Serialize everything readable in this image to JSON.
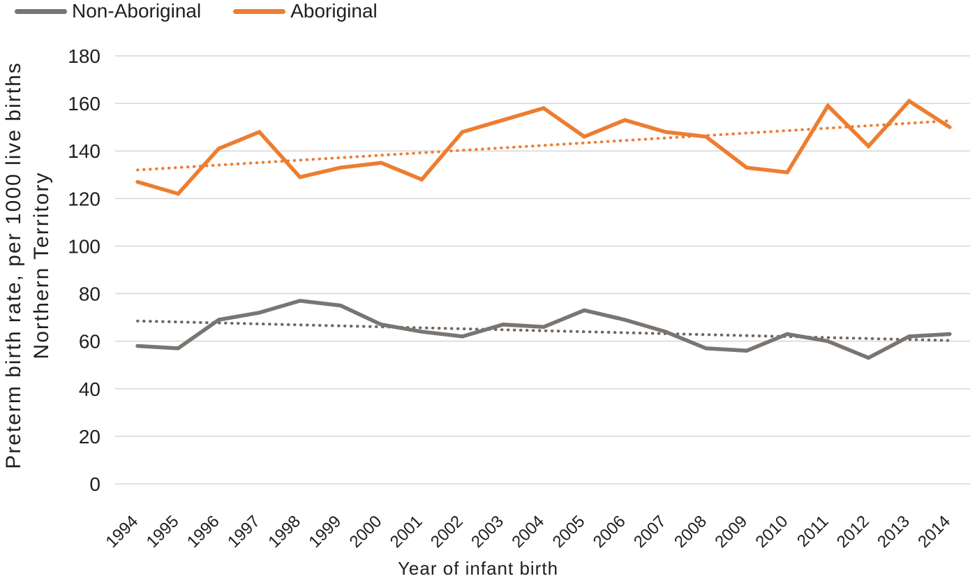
{
  "chart_data": {
    "type": "line",
    "title": "",
    "xlabel": "Year of infant birth",
    "ylabel_lines": [
      "Preterm birth rate, per 1000 live births",
      "Northern Territory"
    ],
    "x_categories": [
      "1994",
      "1995",
      "1996",
      "1997",
      "1998",
      "1999",
      "2000",
      "2001",
      "2002",
      "2003",
      "2004",
      "2005",
      "2006",
      "2007",
      "2008",
      "2009",
      "2010",
      "2011",
      "2012",
      "2013",
      "2014"
    ],
    "series": [
      {
        "name": "Non-Aboriginal",
        "color": "#7a7571",
        "trend_color": "#6d6863",
        "values": [
          58,
          57,
          69,
          72,
          77,
          75,
          67,
          64,
          62,
          67,
          66,
          73,
          69,
          64,
          57,
          56,
          63,
          60,
          53,
          62,
          63
        ],
        "trendline": {
          "start": 68.5,
          "end": 60.3,
          "style": "dotted"
        }
      },
      {
        "name": "Aboriginal",
        "color": "#ed7d31",
        "trend_color": "#ed7d31",
        "values": [
          127,
          122,
          141,
          148,
          129,
          133,
          135,
          128,
          148,
          153,
          158,
          146,
          153,
          148,
          146,
          133,
          131,
          159,
          142,
          161,
          150
        ],
        "trendline": {
          "start": 132,
          "end": 152.7,
          "style": "dotted"
        }
      }
    ],
    "yticks": [
      0,
      20,
      40,
      60,
      80,
      100,
      120,
      140,
      160,
      180
    ],
    "ylim": [
      0,
      180
    ],
    "grid": "horizontal",
    "gridline_color": "#d6d6d6",
    "text_color": "#1f1f1f",
    "legend_position": "top-left"
  }
}
